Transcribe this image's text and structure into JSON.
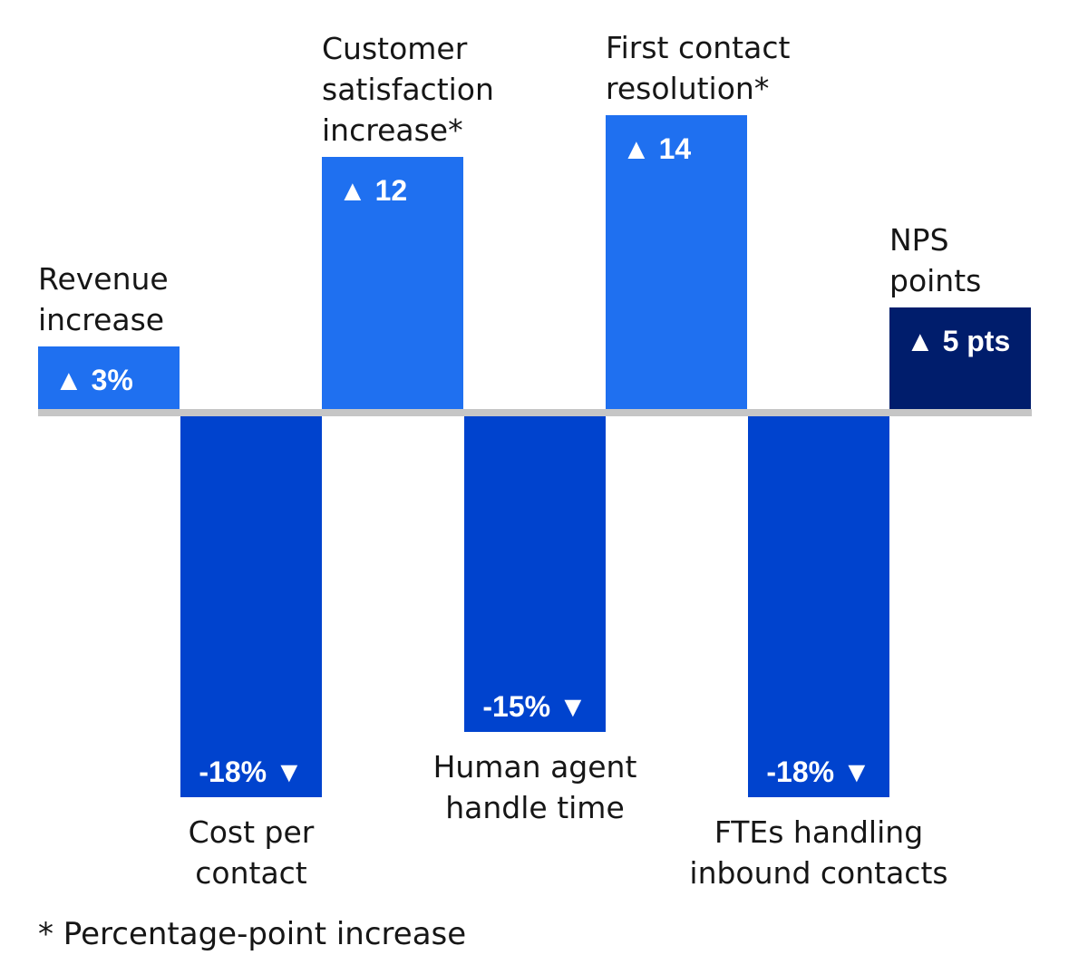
{
  "chart_data": {
    "type": "bar",
    "categories": [
      "Revenue increase",
      "Cost per contact",
      "Customer satisfaction increase*",
      "Human agent handle time",
      "First contact resolution*",
      "FTEs handling inbound contacts",
      "NPS points"
    ],
    "category_labels": [
      [
        "Revenue",
        "increase"
      ],
      [
        "Cost per",
        "contact"
      ],
      [
        "Customer",
        "satisfaction",
        "increase*"
      ],
      [
        "Human agent",
        "handle time"
      ],
      [
        "First contact",
        "resolution*"
      ],
      [
        "FTEs handling",
        "inbound contacts"
      ],
      [
        "NPS",
        "points"
      ]
    ],
    "values": [
      3,
      -18,
      12,
      -15,
      14,
      -18,
      5
    ],
    "value_labels": [
      "3%",
      "-18%",
      "12",
      "-15%",
      "14",
      "-18%",
      "5 pts"
    ],
    "units": [
      "%",
      "%",
      "percentage points",
      "%",
      "percentage points",
      "%",
      "NPS points"
    ],
    "colors": [
      "#1f70f0",
      "#0043ce",
      "#1f70f0",
      "#0043ce",
      "#1f70f0",
      "#0043ce",
      "#001d6c"
    ],
    "baseline_color": "#c6c6c6",
    "up_marker": "▲",
    "down_marker": "▼",
    "title": "",
    "xlabel": "",
    "ylabel": "",
    "grid": false,
    "legend": "none"
  },
  "footnote": "* Percentage-point increase"
}
